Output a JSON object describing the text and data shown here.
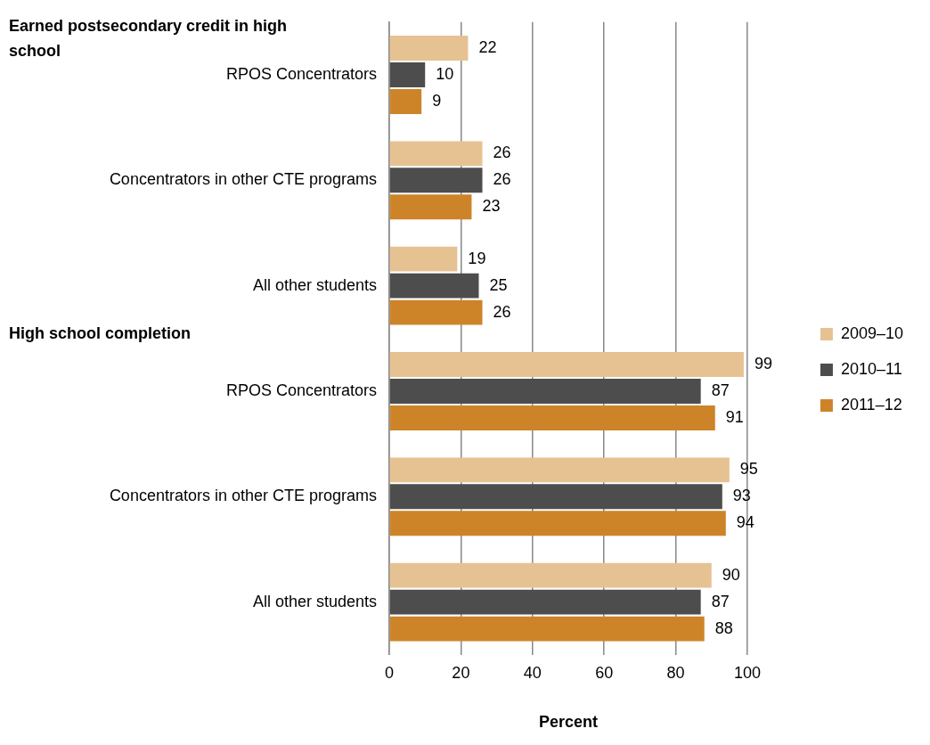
{
  "chart_data": {
    "type": "bar",
    "orientation": "horizontal",
    "xlabel": "Percent",
    "categories": [
      "RPOS Concentrators",
      "Concentrators in other CTE programs",
      "All other students",
      "RPOS Concentrators",
      "Concentrators in other CTE programs",
      "All other students"
    ],
    "series": [
      {
        "name": "2009–10",
        "color": "#e6c293",
        "values": [
          22,
          26,
          19,
          99,
          95,
          90
        ]
      },
      {
        "name": "2010–11",
        "color": "#4d4d4d",
        "values": [
          10,
          26,
          25,
          87,
          93,
          87
        ]
      },
      {
        "name": "2011–12",
        "color": "#cd8429",
        "values": [
          9,
          23,
          26,
          91,
          94,
          88
        ]
      }
    ],
    "xlim": [
      0,
      100
    ],
    "xticks": [
      0,
      20,
      40,
      60,
      80,
      100
    ],
    "grid": "x",
    "legend": "right",
    "data_labels": true,
    "annotations": [
      "Earned postsecondary credit in high school",
      "High school completion"
    ]
  }
}
